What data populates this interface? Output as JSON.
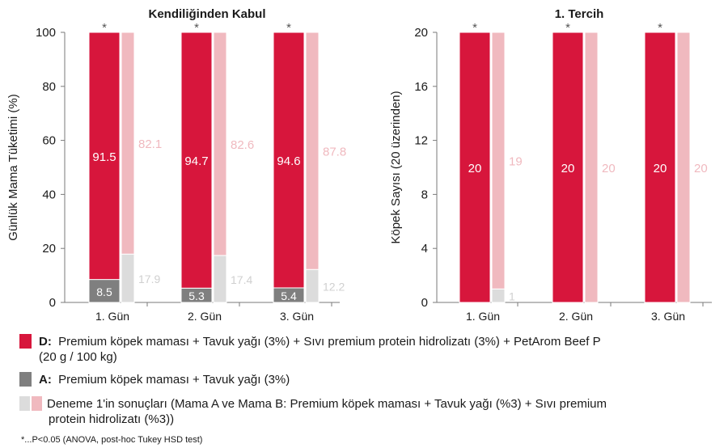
{
  "chart_data": [
    {
      "type": "bar",
      "title": "Kendiliğinden Kabul",
      "ylabel": "Günlük Mama Tüketimi (%)",
      "xlabel": "",
      "ylim": [
        0,
        100
      ],
      "yticks": [
        0,
        20,
        40,
        60,
        80,
        100
      ],
      "categories": [
        "1. Gün",
        "2. Gün",
        "3. Gün"
      ],
      "significance_marker": "*",
      "stacked_bar": {
        "series": [
          {
            "name": "D",
            "values": [
              91.5,
              94.7,
              94.6
            ],
            "labels": [
              "91.5",
              "94.7",
              "94.6"
            ],
            "color": "#d7163c",
            "label_color": "#ffffff"
          },
          {
            "name": "A",
            "values": [
              8.5,
              5.3,
              5.4
            ],
            "labels": [
              "8.5",
              "5.3",
              "5.4"
            ],
            "color": "#7f7f7f",
            "label_color": "#ffffff"
          }
        ]
      },
      "ghost_bar": {
        "series": [
          {
            "name": "Mama B",
            "values": [
              82.1,
              82.6,
              87.8
            ],
            "labels": [
              "82.1",
              "82.6",
              "87.8"
            ],
            "color": "#f0b9bf",
            "label_color": "#f0b9bf"
          },
          {
            "name": "Mama A",
            "values": [
              17.9,
              17.4,
              12.2
            ],
            "labels": [
              "17.9",
              "17.4",
              "12.2"
            ],
            "color": "#dcdcdc",
            "label_color": "#d0d0d0"
          }
        ]
      },
      "grid": false
    },
    {
      "type": "bar",
      "title": "1. Tercih",
      "ylabel": "Köpek Sayısı (20 üzerinden)",
      "xlabel": "",
      "ylim": [
        0,
        20
      ],
      "yticks": [
        0,
        4,
        8,
        12,
        16,
        20
      ],
      "categories": [
        "1. Gün",
        "2. Gün",
        "3. Gün"
      ],
      "significance_marker": "*",
      "stacked_bar": {
        "series": [
          {
            "name": "D",
            "values": [
              20,
              20,
              20
            ],
            "labels": [
              "20",
              "20",
              "20"
            ],
            "color": "#d7163c",
            "label_color": "#ffffff"
          },
          {
            "name": "A",
            "values": [
              0,
              0,
              0
            ],
            "labels": [
              "",
              "",
              ""
            ],
            "color": "#7f7f7f",
            "label_color": "#ffffff"
          }
        ]
      },
      "ghost_bar": {
        "series": [
          {
            "name": "Mama B",
            "values": [
              19,
              20,
              20
            ],
            "labels": [
              "19",
              "20",
              "20"
            ],
            "color": "#f0b9bf",
            "label_color": "#f0b9bf"
          },
          {
            "name": "Mama A",
            "values": [
              1,
              0,
              0
            ],
            "labels": [
              "1",
              "",
              ""
            ],
            "color": "#dcdcdc",
            "label_color": "#d0d0d0"
          }
        ]
      },
      "grid": false
    }
  ],
  "legend": {
    "d_key": "D:",
    "d_text": "Premium köpek maması + Tavuk yağı (3%) + Sıvı premium protein hidrolizatı (3%) + PetArom Beef P",
    "d_text_2": "(20 g / 100 kg)",
    "a_key": "A:",
    "a_text": "Premium köpek maması + Tavuk yağı (3%)",
    "trial_text": "Deneme 1'in sonuçları (Mama A ve Mama B: Premium köpek maması + Tavuk yağı (%3) + Sıvı premium",
    "trial_text_2": "protein hidrolizatı (%3))"
  },
  "footnote": "*...P<0.05 (ANOVA, post-hoc Tukey HSD test)",
  "colors": {
    "d": "#d7163c",
    "a": "#7f7f7f",
    "ghost_b": "#f0b9bf",
    "ghost_a": "#dcdcdc",
    "axis": "#7a7a7a"
  }
}
